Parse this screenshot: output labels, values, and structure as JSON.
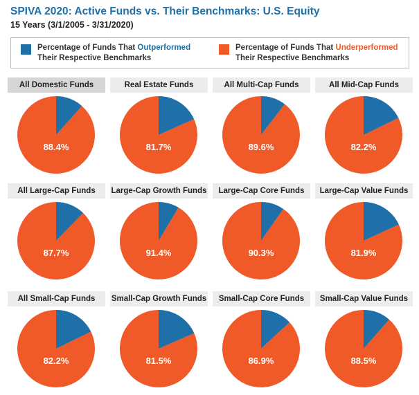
{
  "header": {
    "title": "SPIVA 2020: Active Funds vs. Their Benchmarks: U.S. Equity",
    "subtitle": "15 Years (3/1/2005 - 3/31/2020)"
  },
  "legend": {
    "outperformed": {
      "prefix": "Percentage of Funds That ",
      "keyword": "Outperformed",
      "line2": "Their Respective Benchmarks",
      "color": "#1f6fa8"
    },
    "underperformed": {
      "prefix": "Percentage of Funds That ",
      "keyword": "Underperformed",
      "line2": "Their Respective Benchmarks",
      "color": "#ef5a28"
    }
  },
  "chart_data": {
    "type": "pie",
    "title": "SPIVA 2020: Active Funds vs. Their Benchmarks: U.S. Equity",
    "subtitle": "15 Years (3/1/2005 - 3/31/2020)",
    "legend_position": "top",
    "series_names": [
      "Percentage of Funds That Outperformed Their Respective Benchmarks",
      "Percentage of Funds That Underperformed Their Respective Benchmarks"
    ],
    "colors": {
      "outperformed": "#1f6fa8",
      "underperformed": "#ef5a28"
    },
    "charts": [
      {
        "name": "All Domestic Funds",
        "underperformed": 88.4,
        "outperformed": 11.6,
        "label": "88.4%"
      },
      {
        "name": "Real Estate Funds",
        "underperformed": 81.7,
        "outperformed": 18.3,
        "label": "81.7%"
      },
      {
        "name": "All Multi-Cap Funds",
        "underperformed": 89.6,
        "outperformed": 10.4,
        "label": "89.6%"
      },
      {
        "name": "All Mid-Cap Funds",
        "underperformed": 82.2,
        "outperformed": 17.8,
        "label": "82.2%"
      },
      {
        "name": "All Large-Cap Funds",
        "underperformed": 87.7,
        "outperformed": 12.3,
        "label": "87.7%"
      },
      {
        "name": "Large-Cap Growth Funds",
        "underperformed": 91.4,
        "outperformed": 8.6,
        "label": "91.4%"
      },
      {
        "name": "Large-Cap Core Funds",
        "underperformed": 90.3,
        "outperformed": 9.7,
        "label": "90.3%"
      },
      {
        "name": "Large-Cap Value Funds",
        "underperformed": 81.9,
        "outperformed": 18.1,
        "label": "81.9%"
      },
      {
        "name": "All Small-Cap Funds",
        "underperformed": 82.2,
        "outperformed": 17.8,
        "label": "82.2%"
      },
      {
        "name": "Small-Cap Growth Funds",
        "underperformed": 81.5,
        "outperformed": 18.5,
        "label": "81.5%"
      },
      {
        "name": "Small-Cap Core Funds",
        "underperformed": 86.9,
        "outperformed": 13.1,
        "label": "86.9%"
      },
      {
        "name": "Small-Cap Value Funds",
        "underperformed": 88.5,
        "outperformed": 11.5,
        "label": "88.5%"
      }
    ]
  }
}
